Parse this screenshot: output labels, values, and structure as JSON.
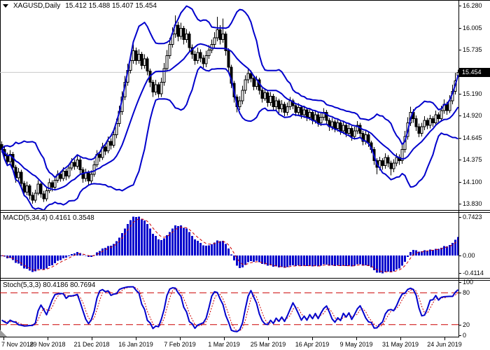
{
  "window": {
    "title": "XAGUSD,Daily",
    "ohlc_text": "15.412 15.488 15.407 15.454"
  },
  "colors": {
    "band_blue": "#0000CC",
    "bull_fill": "#FFFFFF",
    "bear_fill": "#000000",
    "candle_outline": "#000000",
    "macd_bar": "#0000CC",
    "signal_red": "#CC0000",
    "stoch_k_blue": "#0000CC",
    "stoch_d_red": "#CC0000",
    "level_red": "#CC0000",
    "price_line_gray": "#C8C8C8",
    "tag_bg": "#000000",
    "tag_fg": "#FFFFFF"
  },
  "main_chart": {
    "y_tick_labels": [
      "16.280",
      "16.005",
      "15.735",
      "15.190",
      "14.920",
      "14.645",
      "14.375",
      "14.100",
      "13.830"
    ],
    "current_price": 15.454,
    "current_price_label": "15.454"
  },
  "macd_panel": {
    "label": "MACD(5,34,4) 0.4161 0.3548",
    "y_tick_labels": [
      "0.7423",
      "0.00",
      "-0.4114"
    ]
  },
  "stoch_panel": {
    "label": "Stoch(5,3,3) 80.4186 80.7694",
    "y_tick_labels": [
      "100",
      "80",
      "20",
      "0"
    ]
  },
  "x_axis": {
    "labels": [
      "7 Nov 2018",
      "29 Nov 2018",
      "21 Dec 2018",
      "16 Jan 2019",
      "7 Feb 2019",
      "1 Mar 2019",
      "25 Mar 2019",
      "16 Apr 2019",
      "9 May 2019",
      "31 May 2019",
      "24 Jun 2019"
    ]
  },
  "chart_data": {
    "type": "candlestick",
    "symbol": "XAGUSD",
    "timeframe": "Daily",
    "y_range": [
      13.75,
      16.35
    ],
    "x_labels": [
      "7 Nov 2018",
      "29 Nov 2018",
      "21 Dec 2018",
      "16 Jan 2019",
      "7 Feb 2019",
      "1 Mar 2019",
      "25 Mar 2019",
      "16 Apr 2019",
      "9 May 2019",
      "31 May 2019",
      "24 Jun 2019"
    ],
    "last_ohlc": {
      "open": 15.412,
      "high": 15.488,
      "low": 15.407,
      "close": 15.454
    },
    "overlays": [
      {
        "name": "Bollinger Bands",
        "period": 13,
        "deviation": 2,
        "color": "#0000CC"
      }
    ],
    "indicators": [
      {
        "name": "MACD",
        "fast": 5,
        "slow": 34,
        "signal": 4,
        "current": [
          0.4161,
          0.3548
        ],
        "axis": [
          0.7423,
          0.0,
          -0.4114
        ]
      },
      {
        "name": "Stochastic",
        "k": 5,
        "d": 3,
        "slowing": 3,
        "current": [
          80.4186,
          80.7694
        ],
        "levels": [
          80,
          20
        ],
        "axis": [
          100,
          80,
          20,
          0
        ]
      }
    ],
    "ohlc": [
      [
        14.56,
        14.6,
        14.46,
        14.5
      ],
      [
        14.5,
        14.54,
        14.37,
        14.42
      ],
      [
        14.42,
        14.46,
        14.3,
        14.35
      ],
      [
        14.35,
        14.49,
        14.32,
        14.44
      ],
      [
        14.44,
        14.47,
        14.23,
        14.28
      ],
      [
        14.28,
        14.31,
        14.09,
        14.15
      ],
      [
        14.15,
        14.27,
        14.11,
        14.22
      ],
      [
        14.22,
        14.25,
        14.03,
        14.08
      ],
      [
        14.08,
        14.11,
        13.92,
        13.97
      ],
      [
        13.97,
        14.1,
        13.93,
        14.05
      ],
      [
        14.05,
        14.07,
        13.88,
        13.93
      ],
      [
        13.93,
        13.97,
        13.83,
        13.87
      ],
      [
        13.87,
        14.0,
        13.84,
        13.96
      ],
      [
        13.96,
        14.12,
        13.93,
        14.07
      ],
      [
        14.07,
        14.09,
        13.9,
        13.95
      ],
      [
        13.95,
        13.99,
        13.85,
        13.89
      ],
      [
        13.89,
        14.04,
        13.86,
        13.99
      ],
      [
        13.99,
        14.14,
        13.96,
        14.09
      ],
      [
        14.09,
        14.12,
        13.98,
        14.03
      ],
      [
        14.03,
        14.17,
        14.0,
        14.12
      ],
      [
        14.12,
        14.24,
        14.09,
        14.19
      ],
      [
        14.19,
        14.23,
        14.1,
        14.14
      ],
      [
        14.14,
        14.28,
        14.11,
        14.23
      ],
      [
        14.23,
        14.26,
        14.12,
        14.17
      ],
      [
        14.17,
        14.32,
        14.14,
        14.27
      ],
      [
        14.27,
        14.39,
        14.24,
        14.34
      ],
      [
        14.34,
        14.38,
        14.25,
        14.29
      ],
      [
        14.29,
        14.42,
        14.26,
        14.37
      ],
      [
        14.37,
        14.4,
        14.2,
        14.25
      ],
      [
        14.25,
        14.28,
        14.09,
        14.14
      ],
      [
        14.14,
        14.26,
        14.1,
        14.21
      ],
      [
        14.21,
        14.24,
        14.06,
        14.11
      ],
      [
        14.11,
        14.24,
        14.07,
        14.19
      ],
      [
        14.19,
        14.36,
        14.16,
        14.31
      ],
      [
        14.31,
        14.49,
        14.28,
        14.44
      ],
      [
        14.44,
        14.48,
        14.35,
        14.4
      ],
      [
        14.4,
        14.58,
        14.37,
        14.53
      ],
      [
        14.53,
        14.57,
        14.43,
        14.48
      ],
      [
        14.48,
        14.66,
        14.45,
        14.6
      ],
      [
        14.6,
        14.64,
        14.5,
        14.55
      ],
      [
        14.55,
        14.74,
        14.52,
        14.68
      ],
      [
        14.68,
        14.88,
        14.64,
        14.82
      ],
      [
        14.82,
        15.04,
        14.78,
        14.97
      ],
      [
        14.97,
        15.22,
        14.93,
        15.15
      ],
      [
        15.15,
        15.41,
        15.11,
        15.33
      ],
      [
        15.33,
        15.56,
        15.29,
        15.48
      ],
      [
        15.48,
        15.68,
        15.44,
        15.6
      ],
      [
        15.6,
        15.8,
        15.56,
        15.72
      ],
      [
        15.72,
        15.76,
        15.55,
        15.6
      ],
      [
        15.6,
        15.74,
        15.56,
        15.68
      ],
      [
        15.68,
        15.71,
        15.49,
        15.54
      ],
      [
        15.54,
        15.68,
        15.5,
        15.62
      ],
      [
        15.62,
        15.65,
        15.42,
        15.47
      ],
      [
        15.47,
        15.5,
        15.27,
        15.33
      ],
      [
        15.33,
        15.36,
        15.15,
        15.21
      ],
      [
        15.21,
        15.36,
        15.17,
        15.3
      ],
      [
        15.3,
        15.33,
        15.14,
        15.19
      ],
      [
        15.19,
        15.39,
        15.15,
        15.33
      ],
      [
        15.33,
        15.57,
        15.29,
        15.5
      ],
      [
        15.5,
        15.73,
        15.46,
        15.66
      ],
      [
        15.66,
        15.88,
        15.62,
        15.8
      ],
      [
        15.8,
        16.01,
        15.76,
        15.93
      ],
      [
        15.93,
        16.16,
        15.88,
        16.04
      ],
      [
        16.04,
        16.08,
        15.84,
        15.9
      ],
      [
        15.9,
        16.07,
        15.86,
        16.0
      ],
      [
        16.0,
        16.03,
        15.8,
        15.86
      ],
      [
        15.86,
        15.99,
        15.82,
        15.93
      ],
      [
        15.93,
        15.96,
        15.7,
        15.76
      ],
      [
        15.76,
        15.8,
        15.62,
        15.68
      ],
      [
        15.68,
        15.72,
        15.55,
        15.6
      ],
      [
        15.6,
        15.76,
        15.56,
        15.7
      ],
      [
        15.7,
        15.74,
        15.58,
        15.63
      ],
      [
        15.63,
        15.67,
        15.51,
        15.56
      ],
      [
        15.56,
        15.72,
        15.52,
        15.66
      ],
      [
        15.66,
        15.79,
        15.62,
        15.73
      ],
      [
        15.73,
        15.86,
        15.69,
        15.8
      ],
      [
        15.8,
        15.95,
        15.76,
        15.88
      ],
      [
        15.88,
        16.14,
        15.84,
        15.98
      ],
      [
        15.98,
        16.04,
        15.8,
        15.86
      ],
      [
        15.86,
        16.12,
        15.82,
        15.93
      ],
      [
        15.93,
        15.96,
        15.66,
        15.72
      ],
      [
        15.72,
        15.75,
        15.46,
        15.52
      ],
      [
        15.52,
        15.55,
        15.26,
        15.32
      ],
      [
        15.32,
        15.35,
        15.08,
        15.15
      ],
      [
        15.15,
        15.18,
        14.96,
        15.03
      ],
      [
        15.03,
        15.16,
        14.99,
        15.1
      ],
      [
        15.1,
        15.29,
        15.06,
        15.23
      ],
      [
        15.23,
        15.42,
        15.19,
        15.36
      ],
      [
        15.36,
        15.5,
        15.32,
        15.44
      ],
      [
        15.44,
        15.48,
        15.33,
        15.38
      ],
      [
        15.38,
        15.42,
        15.23,
        15.28
      ],
      [
        15.28,
        15.41,
        15.24,
        15.36
      ],
      [
        15.36,
        15.39,
        15.18,
        15.23
      ],
      [
        15.23,
        15.26,
        15.08,
        15.13
      ],
      [
        15.13,
        15.26,
        15.1,
        15.2
      ],
      [
        15.2,
        15.23,
        15.03,
        15.08
      ],
      [
        15.08,
        15.21,
        15.04,
        15.16
      ],
      [
        15.16,
        15.19,
        14.98,
        15.03
      ],
      [
        15.03,
        15.15,
        14.99,
        15.1
      ],
      [
        15.1,
        15.13,
        14.95,
        15.0
      ],
      [
        15.0,
        15.11,
        14.96,
        15.06
      ],
      [
        15.06,
        15.09,
        14.91,
        14.96
      ],
      [
        14.96,
        15.08,
        14.92,
        15.03
      ],
      [
        15.03,
        15.15,
        14.99,
        15.1
      ],
      [
        15.1,
        15.13,
        15.0,
        15.04
      ],
      [
        15.04,
        15.07,
        14.91,
        14.96
      ],
      [
        14.96,
        15.07,
        14.92,
        15.02
      ],
      [
        15.02,
        15.05,
        14.88,
        14.93
      ],
      [
        14.93,
        15.04,
        14.89,
        14.99
      ],
      [
        14.99,
        15.02,
        14.85,
        14.9
      ],
      [
        14.9,
        15.01,
        14.86,
        14.96
      ],
      [
        14.96,
        14.99,
        14.81,
        14.86
      ],
      [
        14.86,
        14.98,
        14.82,
        14.93
      ],
      [
        14.93,
        14.96,
        14.78,
        14.83
      ],
      [
        14.83,
        14.95,
        14.79,
        14.9
      ],
      [
        14.9,
        15.01,
        14.86,
        14.96
      ],
      [
        14.96,
        14.99,
        14.81,
        14.86
      ],
      [
        14.86,
        14.89,
        14.73,
        14.78
      ],
      [
        14.78,
        14.89,
        14.74,
        14.84
      ],
      [
        14.84,
        14.87,
        14.71,
        14.76
      ],
      [
        14.76,
        14.88,
        14.72,
        14.83
      ],
      [
        14.83,
        14.86,
        14.68,
        14.73
      ],
      [
        14.73,
        14.85,
        14.69,
        14.8
      ],
      [
        14.8,
        14.83,
        14.65,
        14.7
      ],
      [
        14.7,
        14.81,
        14.66,
        14.76
      ],
      [
        14.76,
        14.79,
        14.61,
        14.66
      ],
      [
        14.66,
        14.78,
        14.62,
        14.73
      ],
      [
        14.73,
        14.85,
        14.69,
        14.8
      ],
      [
        14.8,
        14.83,
        14.65,
        14.7
      ],
      [
        14.7,
        14.73,
        14.55,
        14.6
      ],
      [
        14.6,
        14.73,
        14.56,
        14.68
      ],
      [
        14.68,
        14.71,
        14.53,
        14.58
      ],
      [
        14.58,
        14.61,
        14.45,
        14.5
      ],
      [
        14.5,
        14.53,
        14.31,
        14.36
      ],
      [
        14.36,
        14.39,
        14.19,
        14.28
      ],
      [
        14.28,
        14.41,
        14.24,
        14.36
      ],
      [
        14.36,
        14.39,
        14.25,
        14.3
      ],
      [
        14.3,
        14.45,
        14.26,
        14.4
      ],
      [
        14.4,
        14.43,
        14.28,
        14.33
      ],
      [
        14.33,
        14.36,
        14.18,
        14.26
      ],
      [
        14.26,
        14.38,
        14.22,
        14.33
      ],
      [
        14.33,
        14.45,
        14.29,
        14.4
      ],
      [
        14.4,
        14.44,
        14.31,
        14.36
      ],
      [
        14.36,
        14.56,
        14.32,
        14.5
      ],
      [
        14.5,
        14.73,
        14.46,
        14.66
      ],
      [
        14.66,
        14.9,
        14.62,
        14.83
      ],
      [
        14.83,
        15.03,
        14.79,
        14.96
      ],
      [
        14.96,
        15.0,
        14.83,
        14.88
      ],
      [
        14.88,
        14.92,
        14.73,
        14.78
      ],
      [
        14.78,
        14.82,
        14.65,
        14.7
      ],
      [
        14.7,
        14.83,
        14.66,
        14.78
      ],
      [
        14.78,
        14.91,
        14.74,
        14.86
      ],
      [
        14.86,
        14.89,
        14.75,
        14.8
      ],
      [
        14.8,
        14.93,
        14.76,
        14.88
      ],
      [
        14.88,
        14.91,
        14.78,
        14.83
      ],
      [
        14.83,
        14.98,
        14.79,
        14.93
      ],
      [
        14.93,
        14.96,
        14.83,
        14.88
      ],
      [
        14.88,
        15.04,
        14.84,
        14.98
      ],
      [
        14.98,
        15.12,
        14.94,
        15.06
      ],
      [
        15.06,
        15.09,
        14.93,
        14.98
      ],
      [
        14.98,
        15.17,
        14.95,
        15.1
      ],
      [
        15.1,
        15.3,
        15.06,
        15.22
      ],
      [
        15.22,
        15.45,
        15.18,
        15.35
      ],
      [
        15.412,
        15.488,
        15.407,
        15.454
      ]
    ]
  }
}
